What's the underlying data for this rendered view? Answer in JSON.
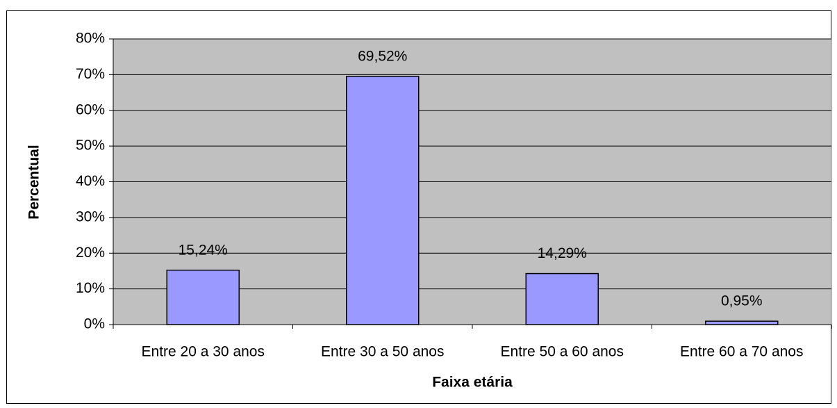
{
  "chart_data": {
    "type": "bar",
    "x_label": "Faixa etária",
    "y_label": "Percentual",
    "categories": [
      "Entre 20 a 30 anos",
      "Entre 30 a 50 anos",
      "Entre 50 a 60 anos",
      "Entre 60 a 70 anos"
    ],
    "values": [
      15.24,
      69.52,
      14.29,
      0.95
    ],
    "value_labels": [
      "15,24%",
      "69,52%",
      "14,29%",
      "0,95%"
    ],
    "color": "#9999ff",
    "ylim": [
      0,
      80
    ],
    "yticks": [
      {
        "value": 0,
        "label": "0%"
      },
      {
        "value": 10,
        "label": "10%"
      },
      {
        "value": 20,
        "label": "20%"
      },
      {
        "value": 30,
        "label": "30%"
      },
      {
        "value": 40,
        "label": "40%"
      },
      {
        "value": 50,
        "label": "50%"
      },
      {
        "value": 60,
        "label": "60%"
      },
      {
        "value": 70,
        "label": "70%"
      },
      {
        "value": 80,
        "label": "80%"
      }
    ],
    "grid": true
  }
}
